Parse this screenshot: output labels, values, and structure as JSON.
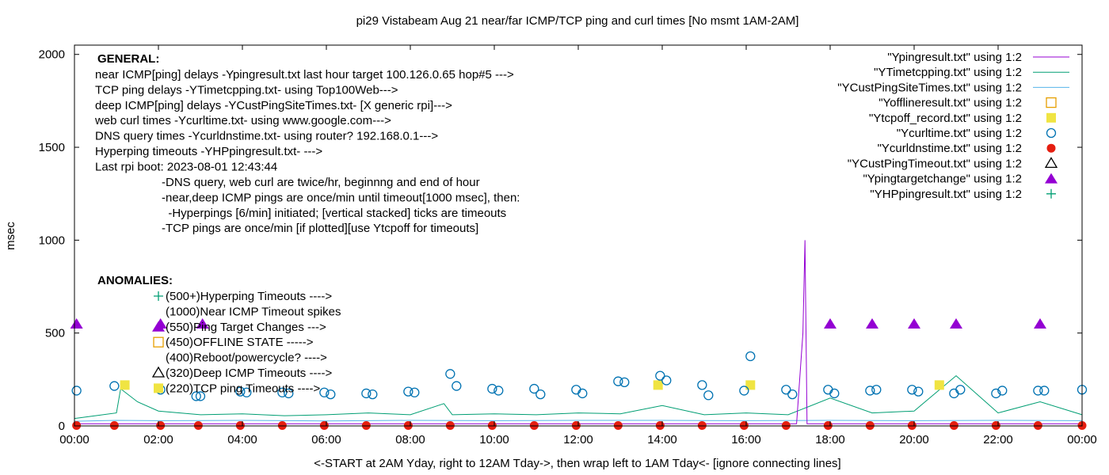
{
  "chart_data": {
    "type": "line",
    "title": "pi29 Vistabeam Aug 21  near/far ICMP/TCP ping and curl times [No msmt 1AM-2AM]",
    "xlabel": "<-START at 2AM Yday, right to 12AM Tday->, then wrap left to 1AM Tday<- [ignore connecting lines]",
    "ylabel": "msec",
    "xlim": [
      0,
      24
    ],
    "ylim": [
      0,
      2050
    ],
    "x_ticks": [
      {
        "v": 0,
        "label": "00:00"
      },
      {
        "v": 2,
        "label": "02:00"
      },
      {
        "v": 4,
        "label": "04:00"
      },
      {
        "v": 6,
        "label": "06:00"
      },
      {
        "v": 8,
        "label": "08:00"
      },
      {
        "v": 10,
        "label": "10:00"
      },
      {
        "v": 12,
        "label": "12:00"
      },
      {
        "v": 14,
        "label": "14:00"
      },
      {
        "v": 16,
        "label": "16:00"
      },
      {
        "v": 18,
        "label": "18:00"
      },
      {
        "v": 20,
        "label": "20:00"
      },
      {
        "v": 22,
        "label": "22:00"
      },
      {
        "v": 24,
        "label": "00:00"
      }
    ],
    "y_ticks": [
      {
        "v": 0,
        "label": "0"
      },
      {
        "v": 500,
        "label": "500"
      },
      {
        "v": 1000,
        "label": "1000"
      },
      {
        "v": 1500,
        "label": "1500"
      },
      {
        "v": 2000,
        "label": "2000"
      }
    ],
    "grid": false,
    "legend_position": "top-right",
    "series": [
      {
        "name": "\"Ypingresult.txt\" using 1:2",
        "style": "line",
        "color": "#9400d3",
        "x": [
          0,
          2,
          4,
          6,
          8,
          10,
          12,
          14,
          16,
          17.2,
          17.35,
          17.4,
          17.45,
          17.5,
          17.6,
          18,
          20,
          22,
          24
        ],
        "y": [
          12,
          12,
          12,
          12,
          12,
          12,
          12,
          12,
          12,
          12,
          500,
          1000,
          12,
          12,
          12,
          12,
          12,
          12,
          12
        ]
      },
      {
        "name": "\"YTimetcpping.txt\" using 1:2",
        "style": "line",
        "color": "#009e73",
        "x": [
          0,
          0.5,
          1,
          1.1,
          1.5,
          2,
          3,
          4,
          5,
          6,
          7,
          8,
          8.8,
          9,
          10,
          11,
          12,
          13,
          14,
          15,
          16,
          17,
          18,
          19,
          20,
          21,
          22,
          23,
          24
        ],
        "y": [
          40,
          55,
          70,
          200,
          130,
          80,
          60,
          65,
          55,
          60,
          70,
          60,
          120,
          60,
          65,
          60,
          70,
          65,
          110,
          60,
          70,
          60,
          150,
          70,
          80,
          270,
          70,
          130,
          60
        ]
      },
      {
        "name": "\"YCustPingSiteTimes.txt\" using 1:2",
        "style": "line",
        "color": "#56b4e9",
        "x": [
          0,
          1,
          2,
          4,
          6,
          8,
          10,
          12,
          14,
          16,
          18,
          20,
          22,
          24
        ],
        "y": [
          25,
          30,
          28,
          30,
          27,
          30,
          28,
          30,
          30,
          28,
          30,
          28,
          30,
          28
        ]
      },
      {
        "name": "\"Yofflineresult.txt\" using 1:2",
        "style": "open-square",
        "color": "#e69f00",
        "x": [],
        "y": []
      },
      {
        "name": "\"Ytcpoff_record.txt\" using 1:2",
        "style": "filled-square",
        "color": "#f0e442",
        "x": [
          1.2,
          13.9,
          16.1,
          20.6
        ],
        "y": [
          220,
          220,
          220,
          220
        ]
      },
      {
        "name": "\"Ycurltime.txt\" using 1:2",
        "style": "open-circle",
        "color": "#0072b2",
        "x": [
          0.05,
          0.95,
          2.05,
          2.9,
          3.0,
          3.95,
          4.1,
          4.95,
          5.1,
          5.95,
          6.1,
          6.95,
          7.1,
          7.95,
          8.1,
          8.95,
          9.1,
          9.95,
          10.1,
          10.95,
          11.1,
          11.95,
          12.1,
          12.95,
          13.1,
          13.95,
          14.1,
          14.95,
          15.1,
          15.95,
          16.1,
          16.95,
          17.1,
          17.95,
          18.1,
          18.95,
          19.1,
          19.95,
          20.1,
          20.95,
          21.1,
          21.95,
          22.1,
          22.95,
          23.1,
          24.0
        ],
        "y": [
          190,
          215,
          195,
          160,
          160,
          185,
          180,
          180,
          175,
          180,
          170,
          175,
          170,
          185,
          180,
          280,
          215,
          200,
          190,
          200,
          170,
          195,
          175,
          240,
          235,
          270,
          245,
          220,
          165,
          190,
          375,
          195,
          170,
          195,
          175,
          190,
          195,
          195,
          185,
          175,
          195,
          175,
          190,
          190,
          190,
          195
        ]
      },
      {
        "name": "\"Ycurldnstime.txt\" using 1:2",
        "style": "filled-circle",
        "color": "#e51e10",
        "x": [
          0.05,
          0.95,
          2.05,
          2.95,
          3.95,
          4.95,
          5.95,
          6.95,
          7.95,
          8.95,
          9.95,
          10.95,
          11.95,
          12.95,
          13.95,
          14.95,
          15.95,
          16.95,
          17.95,
          18.95,
          19.95,
          20.95,
          21.95,
          22.95,
          24.0
        ],
        "y": [
          2,
          2,
          2,
          2,
          2,
          2,
          2,
          2,
          2,
          2,
          2,
          2,
          2,
          2,
          2,
          2,
          2,
          2,
          2,
          2,
          2,
          2,
          2,
          2,
          2
        ]
      },
      {
        "name": "\"YCustPingTimeout.txt\" using 1:2",
        "style": "open-triangle",
        "color": "#000000",
        "x": [],
        "y": []
      },
      {
        "name": "\"Ypingtargetchange\" using 1:2",
        "style": "filled-triangle",
        "color": "#9400d3",
        "x": [
          0.05,
          2.05,
          3.05,
          18.0,
          19.0,
          20.0,
          21.0,
          23.0
        ],
        "y": [
          550,
          550,
          550,
          550,
          550,
          550,
          550,
          550
        ]
      },
      {
        "name": "\"YHPpingresult.txt\" using 1:2",
        "style": "plus",
        "color": "#009e73",
        "x": [],
        "y": []
      }
    ],
    "annotations": {
      "general_heading": "GENERAL:",
      "general_lines": [
        "near ICMP[ping] delays -Ypingresult.txt last hour target 100.126.0.65 hop#5 --->",
        "TCP ping delays -YTimetcpping.txt- using Top100Web--->",
        "deep ICMP[ping] delays -YCustPingSiteTimes.txt- [X generic rpi]--->",
        "web curl times -Ycurltime.txt- using www.google.com--->",
        "DNS query times -Ycurldnstime.txt- using router? 192.168.0.1--->",
        "Hyperping timeouts -YHPpingresult.txt- --->",
        "Last rpi boot: 2023-08-01 12:43:44"
      ],
      "general_notes": [
        "-DNS query, web curl are twice/hr, beginnng and end of hour",
        "-near,deep ICMP pings are once/min until timeout[1000 msec], then:",
        "  -Hyperpings [6/min] initiated; [vertical stacked] ticks are timeouts",
        "-TCP pings are once/min [if plotted][use Ytcpoff for timeouts]"
      ],
      "anomalies_heading": "ANOMALIES:",
      "anomalies_lines": [
        "(500+)Hyperping Timeouts ---->",
        "(1000)Near ICMP Timeout spikes",
        "(550)Ping Target Changes --->",
        "(450)OFFLINE STATE ----->",
        "(400)Reboot/powercycle? ---->",
        "(320)Deep ICMP Timeouts ---->",
        "(220)TCP ping Timeouts ---->"
      ],
      "anomaly_markers": [
        "plus",
        "line",
        "filled-triangle",
        "open-square",
        "none",
        "open-triangle",
        "filled-square"
      ]
    }
  }
}
